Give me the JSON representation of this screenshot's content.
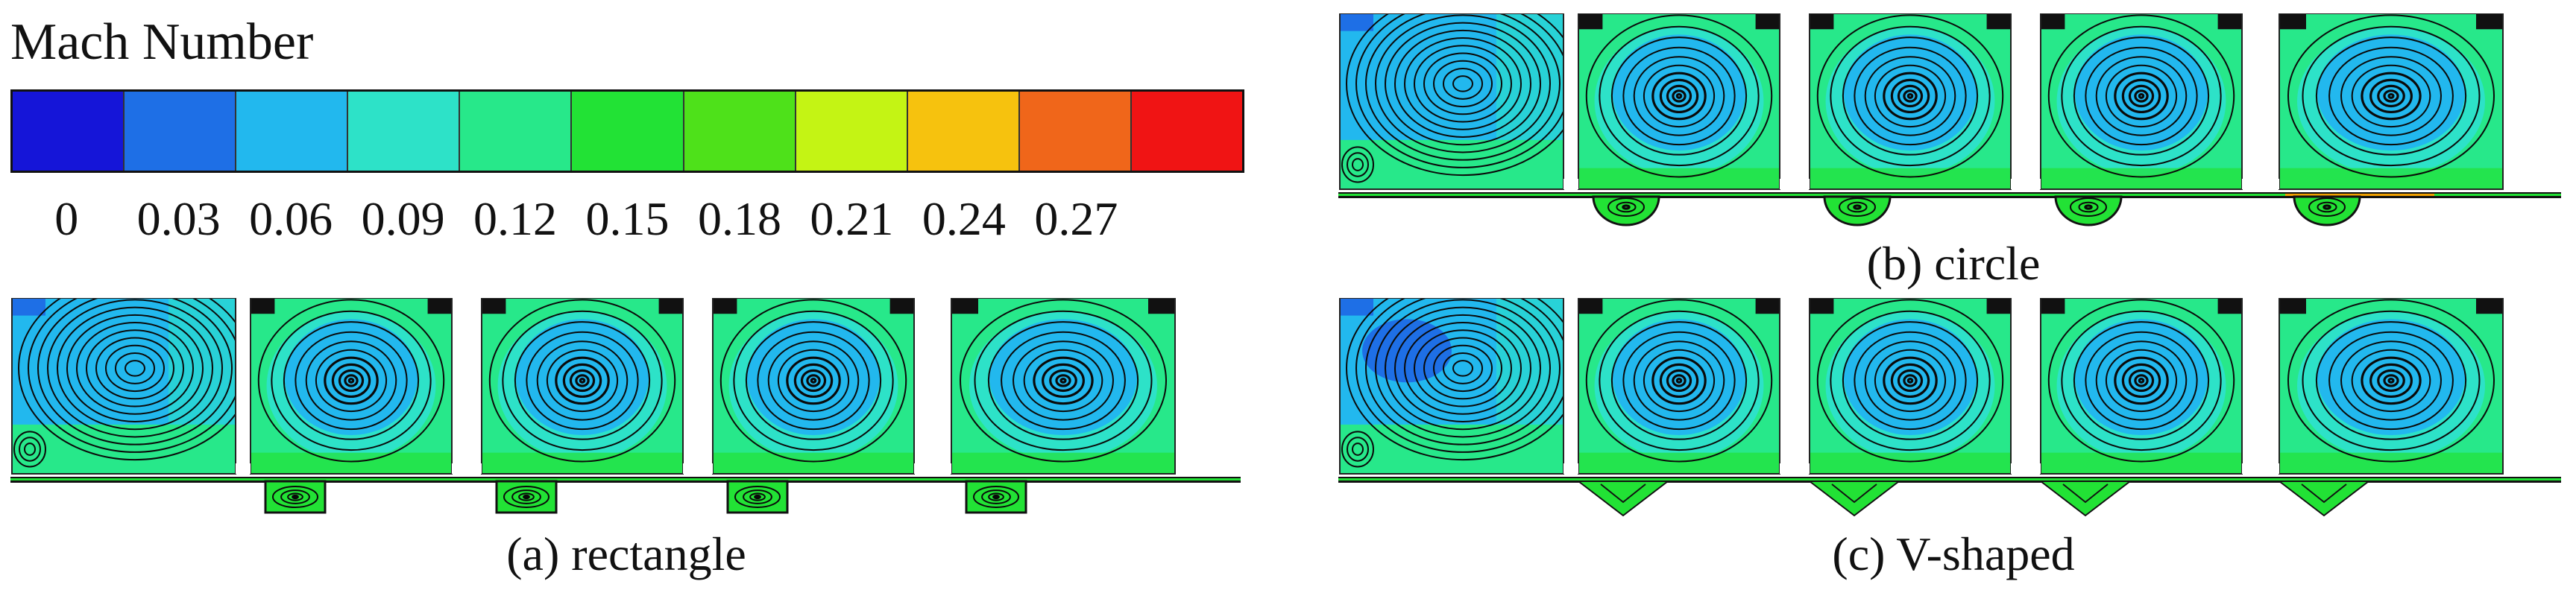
{
  "legend": {
    "title": "Mach Number",
    "colors": [
      "#1515d8",
      "#1e6fe6",
      "#22b8ee",
      "#2de2c8",
      "#27e88a",
      "#22e235",
      "#4ee11a",
      "#c4f414",
      "#f6c20e",
      "#f0661a",
      "#f01414"
    ],
    "ticks": [
      "0",
      "0.03",
      "0.06",
      "0.09",
      "0.12",
      "0.15",
      "0.18",
      "0.21",
      "0.24",
      "0.27"
    ]
  },
  "panels": [
    {
      "id": "a",
      "caption": "(a) rectangle",
      "cavity_shape": "rectangle"
    },
    {
      "id": "b",
      "caption": "(b) circle",
      "cavity_shape": "circle"
    },
    {
      "id": "c",
      "caption": "(c) V-shaped",
      "cavity_shape": "V-shaped"
    }
  ],
  "colors": {
    "deep_blue": "#1e6fe6",
    "light_blue": "#22b8ee",
    "cyan": "#2de2c8",
    "green": "#27e88a",
    "bright_green": "#22e235",
    "streamline": "#0a0a0a",
    "channel_red": "#f01414"
  }
}
